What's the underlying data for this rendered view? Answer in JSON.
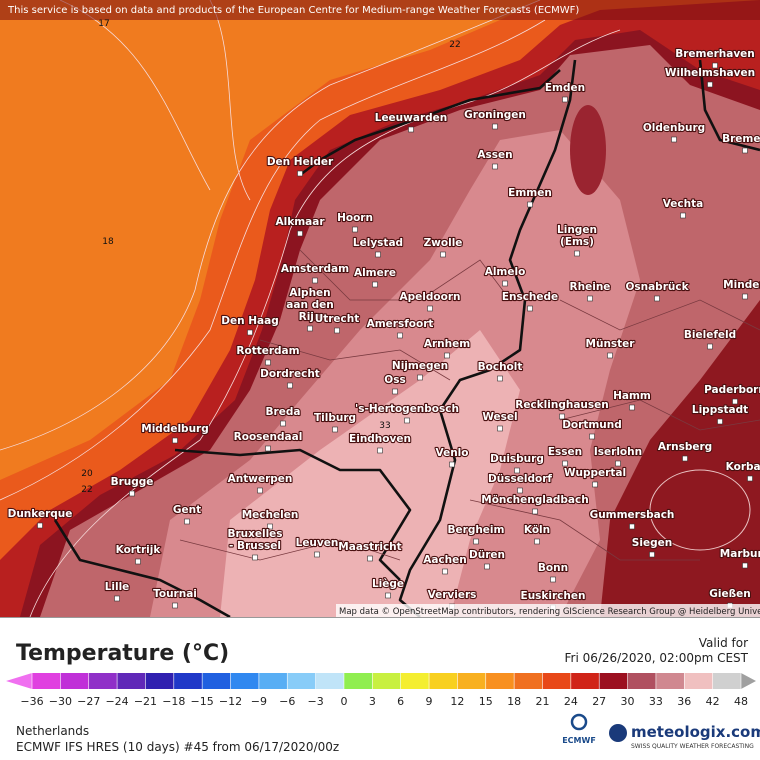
{
  "header": {
    "notice": "This service is based on data and products of the European Centre for Medium-range Weather Forecasts (ECMWF)"
  },
  "map": {
    "cities": [
      "Bremerhaven",
      "Wilhelmshaven",
      "Emden",
      "Groningen",
      "Leeuwarden",
      "Oldenburg",
      "Bremen",
      "Den Helder",
      "Assen",
      "Emmen",
      "Vechta",
      "Alkmaar",
      "Hoorn",
      [
        "Lingen",
        "(Ems)"
      ],
      "Lelystad",
      "Zwolle",
      "Amsterdam",
      "Almere",
      "Almelo",
      "Rheine",
      "Osnabrück",
      "Minden",
      [
        "Alphen",
        "aan den",
        "Rijn"
      ],
      "Apeldoorn",
      "Enschede",
      "Den Haag",
      "Utrecht",
      "Amersfoort",
      "Bielefeld",
      "Arnhem",
      "Münster",
      "Rotterdam",
      "Nijmegen",
      "Bocholt",
      "Dordrecht",
      "Oss",
      "Hamm",
      "Paderborn",
      "Breda",
      "Tilburg",
      "'s-Hertogenbosch",
      "Recklinghausen",
      "Lippstadt",
      "Middelburg",
      "Wesel",
      "Roosendaal",
      "Dortmund",
      "Eindhoven",
      "Arnsberg",
      "Korbach",
      "Venlo",
      "Essen",
      "Iserlohn",
      "Duisburg",
      "Wuppertal",
      "Brugge",
      "Antwerpen",
      "Düsseldorf",
      "Mönchengladbach",
      "Gent",
      "Dunkerque",
      "Mechelen",
      "Gummersbach",
      [
        "Bruxelles",
        "- Brussel"
      ],
      "Kortrijk",
      "Leuven",
      "Maastricht",
      "Bergheim",
      "Köln",
      "Siegen",
      "Marburg",
      "Düren",
      "Aachen",
      "Bonn",
      "Lille",
      "Tournai",
      "Liège",
      "Verviers",
      "Euskirchen",
      "Gießen"
    ],
    "contour_labels": [
      "17",
      "22",
      "18",
      "20",
      "22",
      "33"
    ],
    "attribution": "Map data © OpenStreetMap contributors, rendering GIScience Research Group @ Heidelberg University"
  },
  "legend": {
    "title": "Temperature (°C)",
    "valid_label": "Valid for",
    "valid_time": "Fri 06/26/2020, 02:00pm CEST",
    "ticks": [
      "−36",
      "−30",
      "−27",
      "−24",
      "−21",
      "−18",
      "−15",
      "−12",
      "−9",
      "−6",
      "−3",
      "0",
      "3",
      "6",
      "9",
      "12",
      "15",
      "18",
      "21",
      "24",
      "27",
      "30",
      "33",
      "36",
      "42",
      "48"
    ]
  },
  "footer": {
    "region": "Netherlands",
    "model": "ECMWF IFS HRES (10 days) #45 from  06/17/2020/00z",
    "ecmwf_logo": "ECMWF",
    "brand": "meteologix.com",
    "tagline": "SWISS QUALITY WEATHER FORECASTING"
  }
}
